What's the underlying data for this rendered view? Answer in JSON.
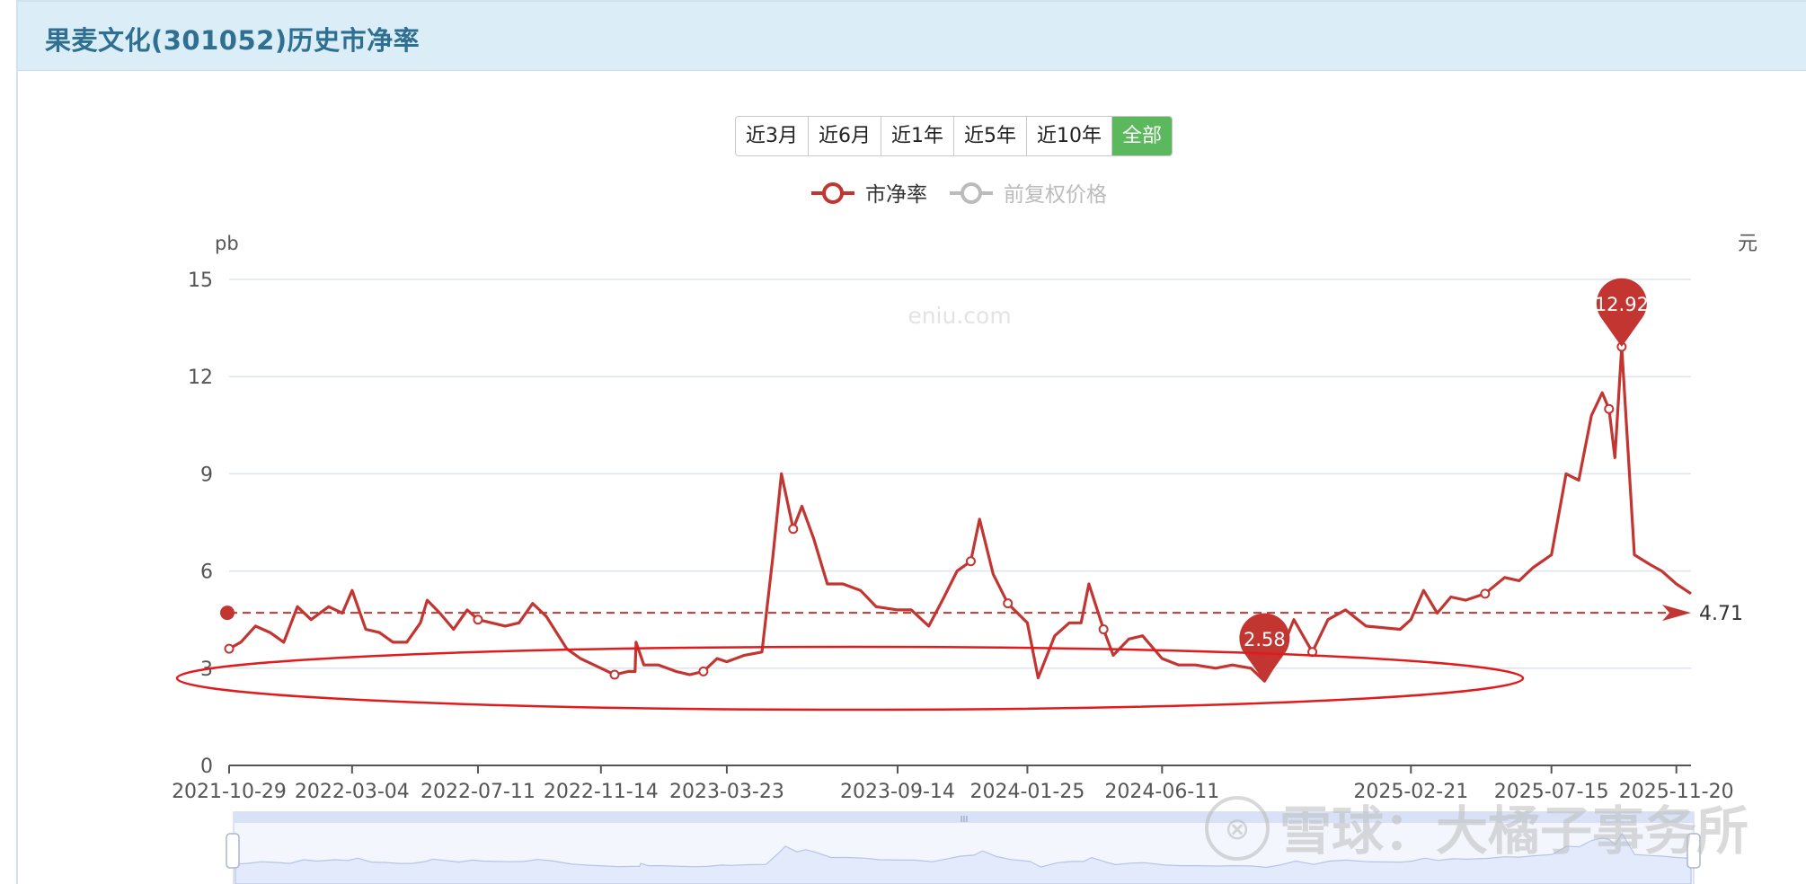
{
  "header": {
    "title": "果麦文化(301052)历史市净率"
  },
  "range_buttons": [
    {
      "label": "近3月",
      "active": false
    },
    {
      "label": "近6月",
      "active": false
    },
    {
      "label": "近1年",
      "active": false
    },
    {
      "label": "近5年",
      "active": false
    },
    {
      "label": "近10年",
      "active": false
    },
    {
      "label": "全部",
      "active": true
    }
  ],
  "watermark": "eniu.com",
  "overlay_text": "雪球：大橘子事务所",
  "colors": {
    "series": "#c23531",
    "inactive": "#bbbbbb",
    "grid": "#dde3ef",
    "ellipse": "#e11b1b",
    "slider_fill": "#e2eafc"
  },
  "chart_data": {
    "type": "line",
    "legend": [
      {
        "name": "市净率",
        "active": true
      },
      {
        "name": "前复权价格",
        "active": false
      }
    ],
    "y_left_unit": "pb",
    "y_right_unit": "元",
    "ylim": [
      0,
      15
    ],
    "yticks": [
      0,
      3,
      6,
      9,
      12,
      15
    ],
    "x_ticks": [
      "2021-10-29",
      "2022-03-04",
      "2022-07-11",
      "2022-11-14",
      "2023-03-23",
      "2023-09-14",
      "2024-01-25",
      "2024-06-11",
      "2025-02-21",
      "2025-07-15",
      "2025-11-20"
    ],
    "series": [
      {
        "name": "市净率",
        "points": [
          [
            "2021-10-29",
            3.6
          ],
          [
            "2021-11-10",
            3.8
          ],
          [
            "2021-11-25",
            4.3
          ],
          [
            "2021-12-10",
            4.1
          ],
          [
            "2021-12-24",
            3.8
          ],
          [
            "2022-01-07",
            4.9
          ],
          [
            "2022-01-21",
            4.5
          ],
          [
            "2022-02-08",
            4.9
          ],
          [
            "2022-02-22",
            4.7
          ],
          [
            "2022-03-04",
            5.4
          ],
          [
            "2022-03-18",
            4.2
          ],
          [
            "2022-04-01",
            4.1
          ],
          [
            "2022-04-15",
            3.8
          ],
          [
            "2022-04-29",
            3.8
          ],
          [
            "2022-05-13",
            4.4
          ],
          [
            "2022-05-20",
            5.1
          ],
          [
            "2022-06-02",
            4.7
          ],
          [
            "2022-06-16",
            4.2
          ],
          [
            "2022-06-30",
            4.8
          ],
          [
            "2022-07-11",
            4.5
          ],
          [
            "2022-07-25",
            4.4
          ],
          [
            "2022-08-08",
            4.3
          ],
          [
            "2022-08-22",
            4.4
          ],
          [
            "2022-09-05",
            5.0
          ],
          [
            "2022-09-19",
            4.6
          ],
          [
            "2022-10-10",
            3.6
          ],
          [
            "2022-10-24",
            3.3
          ],
          [
            "2022-11-07",
            3.1
          ],
          [
            "2022-11-14",
            3.0
          ],
          [
            "2022-11-28",
            2.8
          ],
          [
            "2022-12-12",
            2.9
          ],
          [
            "2022-12-19",
            2.9
          ],
          [
            "2022-12-20",
            3.8
          ],
          [
            "2022-12-28",
            3.1
          ],
          [
            "2023-01-12",
            3.1
          ],
          [
            "2023-01-30",
            2.9
          ],
          [
            "2023-02-13",
            2.8
          ],
          [
            "2023-02-27",
            2.9
          ],
          [
            "2023-03-13",
            3.3
          ],
          [
            "2023-03-23",
            3.2
          ],
          [
            "2023-04-10",
            3.4
          ],
          [
            "2023-04-28",
            3.5
          ],
          [
            "2023-05-09",
            6.4
          ],
          [
            "2023-05-18",
            9.0
          ],
          [
            "2023-05-30",
            7.3
          ],
          [
            "2023-06-08",
            8.0
          ],
          [
            "2023-06-20",
            7.0
          ],
          [
            "2023-07-04",
            5.6
          ],
          [
            "2023-07-20",
            5.6
          ],
          [
            "2023-08-07",
            5.4
          ],
          [
            "2023-08-23",
            4.9
          ],
          [
            "2023-09-14",
            4.8
          ],
          [
            "2023-09-28",
            4.8
          ],
          [
            "2023-10-16",
            4.3
          ],
          [
            "2023-10-30",
            5.1
          ],
          [
            "2023-11-14",
            6.0
          ],
          [
            "2023-11-28",
            6.3
          ],
          [
            "2023-12-07",
            7.6
          ],
          [
            "2023-12-21",
            5.9
          ],
          [
            "2024-01-05",
            5.0
          ],
          [
            "2024-01-25",
            4.4
          ],
          [
            "2024-02-05",
            2.7
          ],
          [
            "2024-02-22",
            4.0
          ],
          [
            "2024-03-08",
            4.4
          ],
          [
            "2024-03-20",
            4.4
          ],
          [
            "2024-03-28",
            5.6
          ],
          [
            "2024-04-12",
            4.2
          ],
          [
            "2024-04-22",
            3.4
          ],
          [
            "2024-05-08",
            3.9
          ],
          [
            "2024-05-22",
            4.0
          ],
          [
            "2024-06-11",
            3.3
          ],
          [
            "2024-06-28",
            3.1
          ],
          [
            "2024-07-15",
            3.1
          ],
          [
            "2024-08-05",
            3.0
          ],
          [
            "2024-08-22",
            3.1
          ],
          [
            "2024-09-10",
            3.0
          ],
          [
            "2024-09-24",
            2.6
          ],
          [
            "2024-10-08",
            3.3
          ],
          [
            "2024-10-24",
            4.5
          ],
          [
            "2024-11-12",
            3.5
          ],
          [
            "2024-11-28",
            4.5
          ],
          [
            "2024-12-16",
            4.8
          ],
          [
            "2025-01-06",
            4.3
          ],
          [
            "2025-02-10",
            4.2
          ],
          [
            "2025-02-21",
            4.5
          ],
          [
            "2025-03-06",
            5.4
          ],
          [
            "2025-03-20",
            4.7
          ],
          [
            "2025-04-03",
            5.2
          ],
          [
            "2025-04-18",
            5.1
          ],
          [
            "2025-05-08",
            5.3
          ],
          [
            "2025-05-28",
            5.8
          ],
          [
            "2025-06-12",
            5.7
          ],
          [
            "2025-06-26",
            6.1
          ],
          [
            "2025-07-15",
            6.5
          ],
          [
            "2025-07-30",
            9.0
          ],
          [
            "2025-08-12",
            8.8
          ],
          [
            "2025-08-25",
            10.8
          ],
          [
            "2025-09-05",
            11.5
          ],
          [
            "2025-09-12",
            11.0
          ],
          [
            "2025-09-18",
            9.5
          ],
          [
            "2025-09-25",
            12.92
          ],
          [
            "2025-10-08",
            6.5
          ],
          [
            "2025-10-24",
            6.2
          ],
          [
            "2025-11-05",
            6.0
          ],
          [
            "2025-11-20",
            5.6
          ],
          [
            "2025-12-05",
            5.3
          ]
        ]
      }
    ],
    "average": {
      "value": 4.71,
      "label": "4.71"
    },
    "markers": [
      {
        "type": "max",
        "date": "2025-09-25",
        "value": 12.92,
        "label": "12.92"
      },
      {
        "type": "min",
        "date": "2024-09-24",
        "value": 2.58,
        "label": "2.58"
      }
    ]
  }
}
